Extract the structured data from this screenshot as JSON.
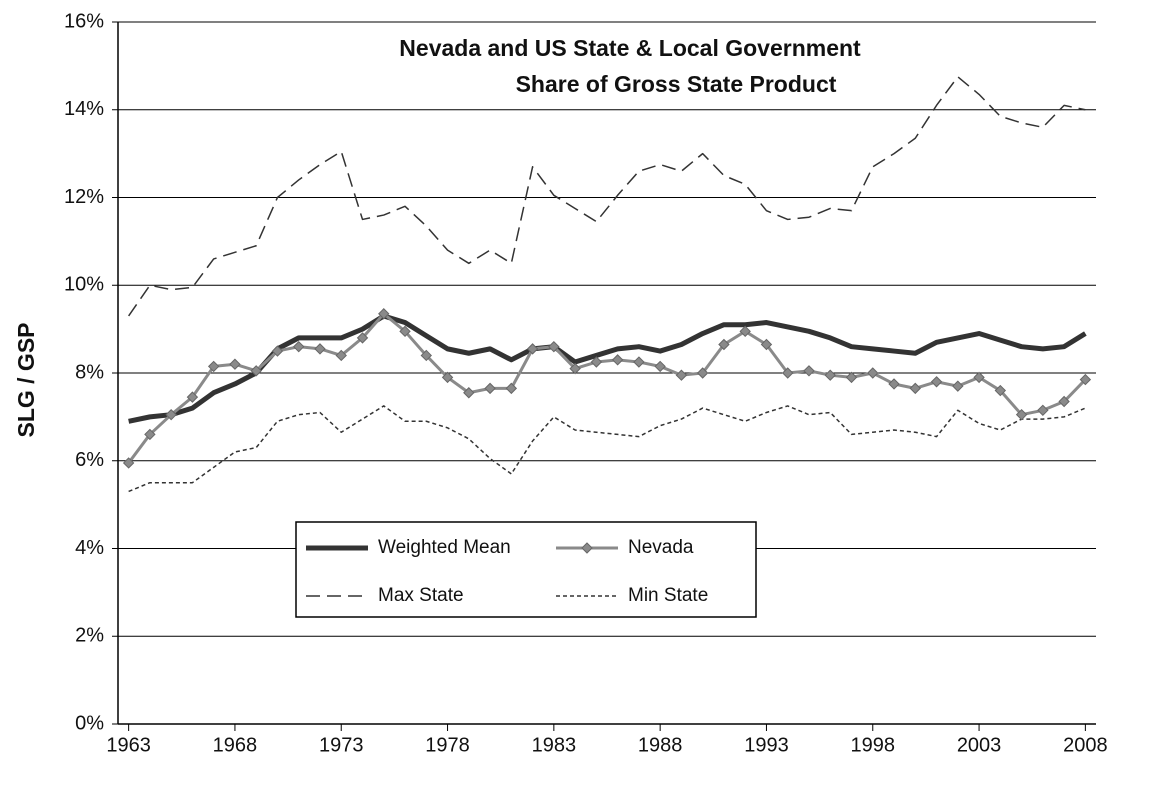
{
  "chart_data": {
    "type": "line",
    "title": [
      "Nevada and US State & Local Government",
      "Share of Gross State Product"
    ],
    "y_label": "SLG / GSP",
    "x": [
      1963,
      1964,
      1965,
      1966,
      1967,
      1968,
      1969,
      1970,
      1971,
      1972,
      1973,
      1974,
      1975,
      1976,
      1977,
      1978,
      1979,
      1980,
      1981,
      1982,
      1983,
      1984,
      1985,
      1986,
      1987,
      1988,
      1989,
      1990,
      1991,
      1992,
      1993,
      1994,
      1995,
      1996,
      1997,
      1998,
      1999,
      2000,
      2001,
      2002,
      2003,
      2004,
      2005,
      2006,
      2007,
      2008
    ],
    "xlim": [
      1962.5,
      2008.5
    ],
    "xticks": [
      1963,
      1968,
      1973,
      1978,
      1983,
      1988,
      1993,
      1998,
      2003,
      2008
    ],
    "ylim": [
      0,
      16
    ],
    "yticks": [
      {
        "value": 0,
        "label": "0%"
      },
      {
        "value": 2,
        "label": "2%"
      },
      {
        "value": 4,
        "label": "4%"
      },
      {
        "value": 6,
        "label": "6%"
      },
      {
        "value": 8,
        "label": "8%"
      },
      {
        "value": 10,
        "label": "10%"
      },
      {
        "value": 12,
        "label": "12%"
      },
      {
        "value": 14,
        "label": "14%"
      },
      {
        "value": 16,
        "label": "16%"
      }
    ],
    "grid": true,
    "series": [
      {
        "name": "Weighted Mean",
        "color": "#333333",
        "style": "solid",
        "width": 5,
        "marker": "none",
        "values": [
          6.9,
          7.0,
          7.05,
          7.2,
          7.55,
          7.75,
          8.0,
          8.55,
          8.8,
          8.8,
          8.8,
          9.0,
          9.3,
          9.15,
          8.85,
          8.55,
          8.45,
          8.55,
          8.3,
          8.55,
          8.6,
          8.25,
          8.4,
          8.55,
          8.6,
          8.5,
          8.65,
          8.9,
          9.1,
          9.1,
          9.15,
          9.05,
          8.95,
          8.8,
          8.6,
          8.55,
          8.5,
          8.45,
          8.7,
          8.8,
          8.9,
          8.75,
          8.6,
          8.55,
          8.6,
          8.9
        ]
      },
      {
        "name": "Nevada",
        "color": "#8a8a8a",
        "style": "solid",
        "width": 3,
        "marker": "diamond",
        "values": [
          5.95,
          6.6,
          7.05,
          7.45,
          8.15,
          8.2,
          8.05,
          8.5,
          8.6,
          8.55,
          8.4,
          8.8,
          9.35,
          8.95,
          8.4,
          7.9,
          7.55,
          7.65,
          7.65,
          8.55,
          8.6,
          8.1,
          8.25,
          8.3,
          8.25,
          8.15,
          7.95,
          8.0,
          8.65,
          8.95,
          8.65,
          8.0,
          8.05,
          7.95,
          7.9,
          8.0,
          7.75,
          7.65,
          7.8,
          7.7,
          7.9,
          7.6,
          7.05,
          7.15,
          7.35,
          7.85
        ]
      },
      {
        "name": "Max State",
        "color": "#333333",
        "style": "dashed",
        "width": 1.5,
        "marker": "none",
        "values": [
          9.3,
          10.0,
          9.9,
          9.95,
          10.6,
          10.75,
          10.9,
          12.0,
          12.4,
          12.75,
          13.05,
          11.5,
          11.6,
          11.8,
          11.35,
          10.8,
          10.5,
          10.8,
          10.5,
          12.7,
          12.05,
          11.75,
          11.45,
          12.05,
          12.6,
          12.75,
          12.6,
          13.0,
          12.5,
          12.3,
          11.7,
          11.5,
          11.55,
          11.75,
          11.7,
          12.7,
          13.0,
          13.35,
          14.1,
          14.75,
          14.35,
          13.85,
          13.7,
          13.6,
          14.1,
          14.0
        ]
      },
      {
        "name": "Min State",
        "color": "#333333",
        "style": "dotted",
        "width": 1.5,
        "marker": "none",
        "values": [
          5.3,
          5.5,
          5.5,
          5.5,
          5.85,
          6.2,
          6.3,
          6.9,
          7.05,
          7.1,
          6.65,
          6.95,
          7.25,
          6.9,
          6.9,
          6.75,
          6.5,
          6.05,
          5.7,
          6.45,
          7.0,
          6.7,
          6.65,
          6.6,
          6.55,
          6.8,
          6.95,
          7.2,
          7.05,
          6.9,
          7.1,
          7.25,
          7.05,
          7.1,
          6.6,
          6.65,
          6.7,
          6.65,
          6.55,
          7.15,
          6.85,
          6.7,
          6.95,
          6.95,
          7.0,
          7.2
        ]
      }
    ]
  }
}
